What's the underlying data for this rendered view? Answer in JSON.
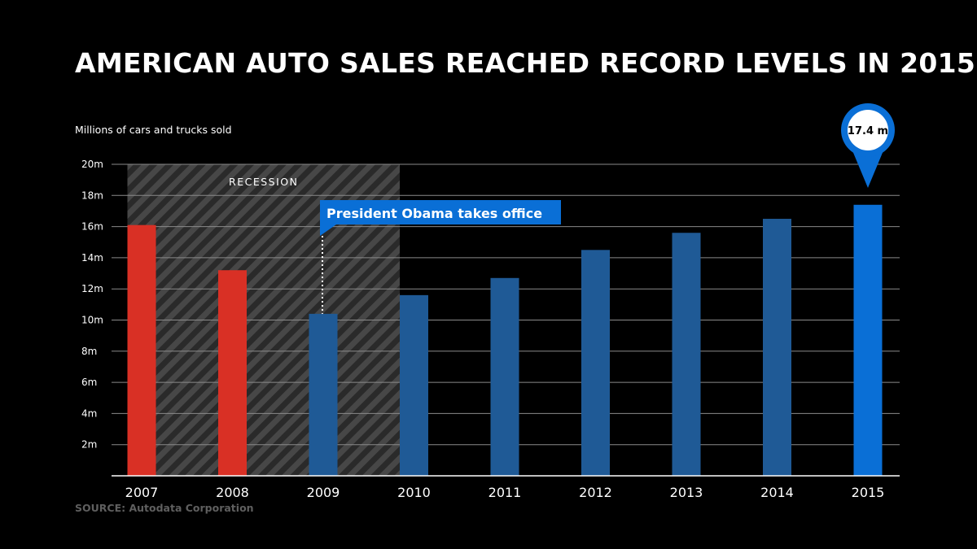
{
  "chart_data": {
    "type": "bar",
    "title": "AMERICAN AUTO SALES REACHED RECORD LEVELS IN 2015",
    "ylabel": "Millions of cars and trucks sold",
    "xlabel": "",
    "ylim": [
      0,
      20
    ],
    "yticks": [
      {
        "value": 2,
        "label": "2m"
      },
      {
        "value": 4,
        "label": "4m"
      },
      {
        "value": 6,
        "label": "6m"
      },
      {
        "value": 8,
        "label": "8m"
      },
      {
        "value": 10,
        "label": "10m"
      },
      {
        "value": 12,
        "label": "12m"
      },
      {
        "value": 14,
        "label": "14m"
      },
      {
        "value": 16,
        "label": "16m"
      },
      {
        "value": 18,
        "label": "18m"
      },
      {
        "value": 20,
        "label": "20m"
      }
    ],
    "grid": true,
    "categories": [
      "2007",
      "2008",
      "2009",
      "2010",
      "2011",
      "2012",
      "2013",
      "2014",
      "2015"
    ],
    "values": [
      16.1,
      13.2,
      10.4,
      11.6,
      12.7,
      14.5,
      15.6,
      16.5,
      17.4
    ],
    "bar_colors": [
      "#d93025",
      "#d93025",
      "#1f5a96",
      "#1f5a96",
      "#1f5a96",
      "#1f5a96",
      "#1f5a96",
      "#1f5a96",
      "#0a6fd6"
    ],
    "recession": {
      "label": "RECESSION",
      "from": "2007",
      "to": "2010"
    },
    "annotation": {
      "text": "President Obama takes office",
      "category": "2009"
    },
    "highlight": {
      "category": "2015",
      "label": "17.4 m"
    }
  },
  "source": "SOURCE: Autodata Corporation",
  "colors": {
    "background": "#000000",
    "recession_bg": "#2a2a2a",
    "recession_stripe": "#4a4a4a",
    "grid": "#8a8a8a",
    "annotation": "#0a6fd6"
  }
}
